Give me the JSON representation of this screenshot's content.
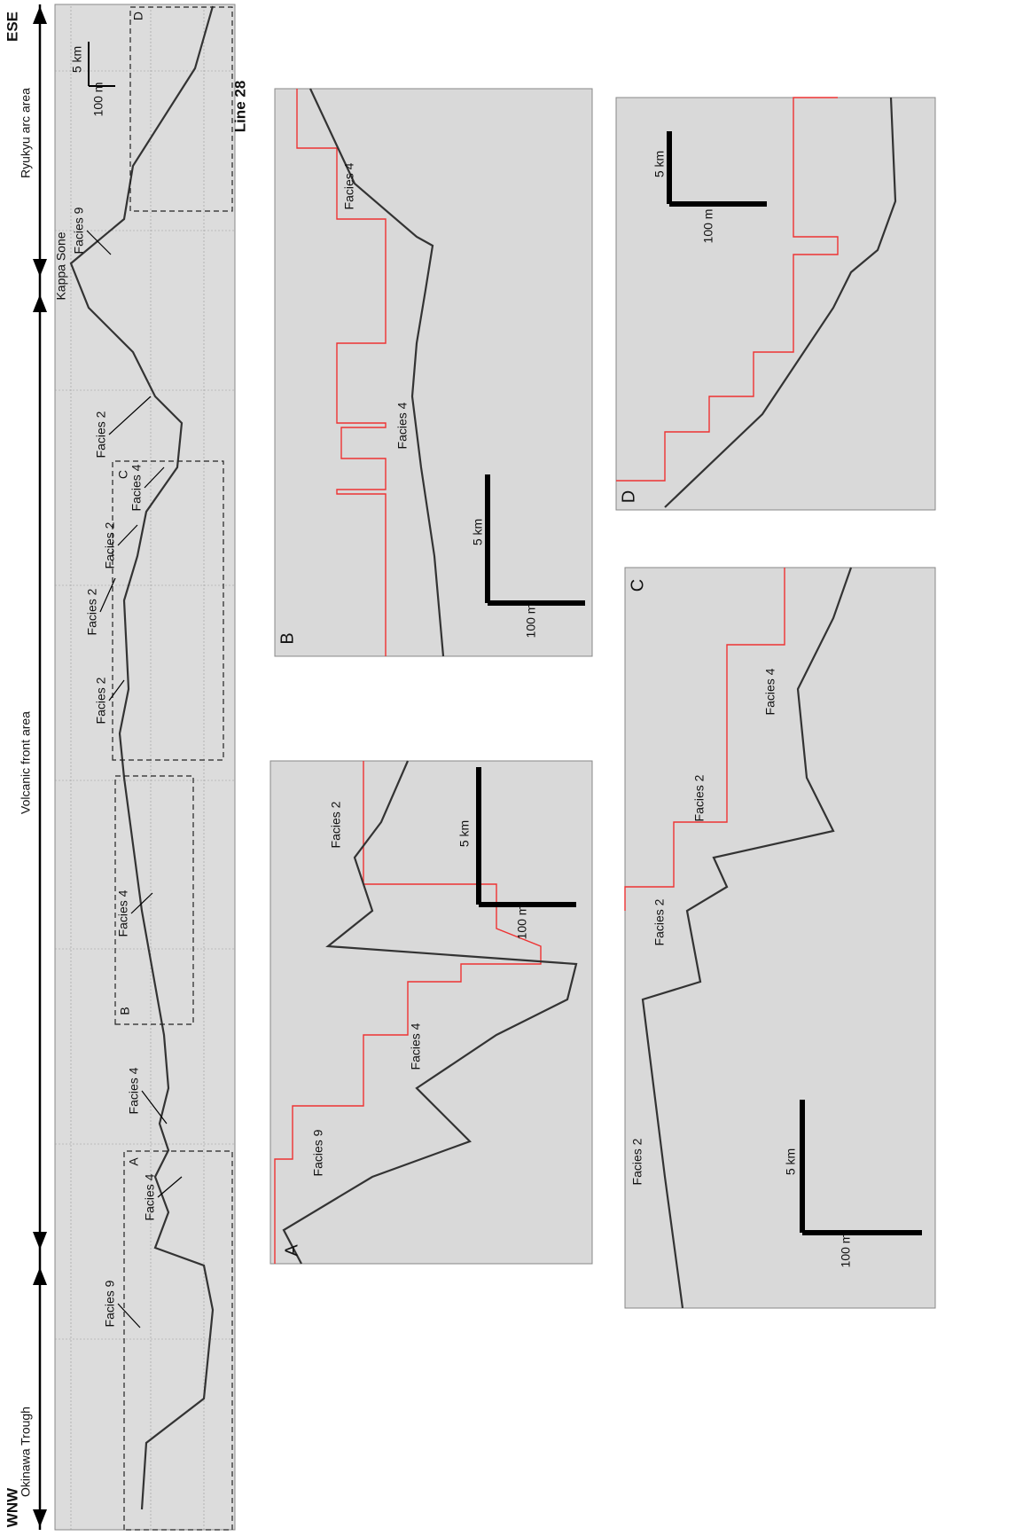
{
  "main_profile": {
    "left_end": "WNW",
    "right_end": "ESE",
    "line_name": "Line 28",
    "areas": [
      "Okinawa Trough",
      "Volcanic front area",
      "Ryukyu arc area"
    ],
    "site": "Kappa Sone",
    "scale": {
      "horizontal": "5 km",
      "vertical": "100 m"
    },
    "boxes": [
      "A",
      "B",
      "C",
      "D"
    ],
    "annotations": [
      "Facies 9",
      "Facies 4",
      "Facies 4",
      "Facies 4",
      "Facies 2",
      "Facies 2",
      "Facies 2",
      "Facies 4",
      "Facies 2",
      "Facies 9"
    ]
  },
  "panels": [
    {
      "label": "A",
      "scale": {
        "horizontal": "5 km",
        "vertical": "100 m"
      },
      "annotations": [
        "Facies 9",
        "Facies 4",
        "Facies 2"
      ]
    },
    {
      "label": "B",
      "scale": {
        "horizontal": "5 km",
        "vertical": "100 m"
      },
      "annotations": [
        "Facies 4",
        "Facies 4"
      ]
    },
    {
      "label": "C",
      "scale": {
        "horizontal": "5 km",
        "vertical": "100 m"
      },
      "annotations": [
        "Facies 2",
        "Facies 2",
        "Facies 2",
        "Facies 4"
      ]
    },
    {
      "label": "D",
      "scale": {
        "horizontal": "5 km",
        "vertical": "100 m"
      }
    }
  ]
}
